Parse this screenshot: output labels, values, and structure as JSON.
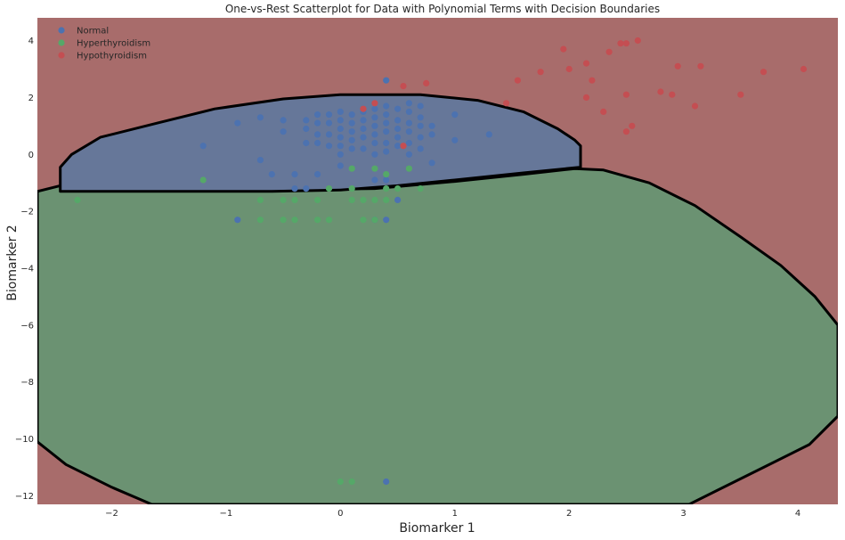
{
  "chart_data": {
    "type": "scatter",
    "title": "One-vs-Rest Scatterplot for Data with Polynomial Terms with Decision Boundaries",
    "xlabel": "Biomarker 1",
    "ylabel": "Biomarker 2",
    "xlim": [
      -2.65,
      4.35
    ],
    "ylim": [
      -12.3,
      4.8
    ],
    "x_ticks": [
      -2,
      -1,
      0,
      1,
      2,
      3,
      4
    ],
    "y_ticks": [
      -12,
      -10,
      -8,
      -6,
      -4,
      -2,
      0,
      2,
      4
    ],
    "x_tick_labels": [
      "−2",
      "−1",
      "0",
      "1",
      "2",
      "3",
      "4"
    ],
    "y_tick_labels": [
      "−12",
      "−10",
      "−8",
      "−6",
      "−4",
      "−2",
      "0",
      "2",
      "4"
    ],
    "grid": false,
    "legend_position": "top-left",
    "regions": [
      {
        "name": "Hypothyroidism",
        "color": "#a86c6b",
        "role": "background"
      },
      {
        "name": "Hyperthyroidism",
        "color": "#6b9272"
      },
      {
        "name": "Normal",
        "color": "#667799"
      }
    ],
    "boundary_color": "#000000",
    "series": [
      {
        "name": "Normal",
        "color": "#4c72b0",
        "points": [
          [
            0.4,
            2.6
          ],
          [
            -0.9,
            1.1
          ],
          [
            -0.7,
            1.3
          ],
          [
            -0.5,
            1.2
          ],
          [
            -0.5,
            0.8
          ],
          [
            -0.3,
            1.2
          ],
          [
            -0.3,
            0.9
          ],
          [
            -0.3,
            0.4
          ],
          [
            -0.2,
            1.4
          ],
          [
            -0.2,
            1.1
          ],
          [
            -0.2,
            0.7
          ],
          [
            -0.2,
            0.4
          ],
          [
            -0.1,
            1.4
          ],
          [
            -0.1,
            1.1
          ],
          [
            -0.1,
            0.7
          ],
          [
            -0.1,
            0.3
          ],
          [
            0.0,
            1.5
          ],
          [
            0.0,
            1.2
          ],
          [
            0.0,
            0.9
          ],
          [
            0.0,
            0.6
          ],
          [
            0.0,
            0.3
          ],
          [
            0.0,
            0.0
          ],
          [
            0.1,
            1.4
          ],
          [
            0.1,
            1.1
          ],
          [
            0.1,
            0.8
          ],
          [
            0.1,
            0.5
          ],
          [
            0.1,
            0.2
          ],
          [
            0.2,
            1.5
          ],
          [
            0.2,
            1.2
          ],
          [
            0.2,
            0.9
          ],
          [
            0.2,
            0.6
          ],
          [
            0.2,
            0.2
          ],
          [
            0.3,
            1.6
          ],
          [
            0.3,
            1.3
          ],
          [
            0.3,
            1.0
          ],
          [
            0.3,
            0.7
          ],
          [
            0.3,
            0.4
          ],
          [
            0.3,
            0.0
          ],
          [
            0.4,
            1.7
          ],
          [
            0.4,
            1.4
          ],
          [
            0.4,
            1.1
          ],
          [
            0.4,
            0.8
          ],
          [
            0.4,
            0.4
          ],
          [
            0.4,
            0.1
          ],
          [
            0.5,
            1.6
          ],
          [
            0.5,
            1.2
          ],
          [
            0.5,
            0.9
          ],
          [
            0.5,
            0.6
          ],
          [
            0.5,
            0.3
          ],
          [
            0.6,
            1.8
          ],
          [
            0.6,
            1.5
          ],
          [
            0.6,
            1.1
          ],
          [
            0.6,
            0.8
          ],
          [
            0.6,
            0.4
          ],
          [
            0.6,
            0.0
          ],
          [
            0.7,
            1.7
          ],
          [
            0.7,
            1.3
          ],
          [
            0.7,
            1.0
          ],
          [
            0.7,
            0.6
          ],
          [
            0.7,
            0.2
          ],
          [
            0.8,
            1.0
          ],
          [
            0.8,
            0.7
          ],
          [
            0.8,
            -0.3
          ],
          [
            1.0,
            1.4
          ],
          [
            1.0,
            0.5
          ],
          [
            1.3,
            0.7
          ],
          [
            -1.2,
            0.3
          ],
          [
            -0.7,
            -0.2
          ],
          [
            -0.6,
            -0.7
          ],
          [
            -0.4,
            -0.7
          ],
          [
            -0.4,
            -1.2
          ],
          [
            -0.3,
            -1.2
          ],
          [
            -0.2,
            -0.7
          ],
          [
            0.0,
            -0.4
          ],
          [
            0.3,
            -0.9
          ],
          [
            0.4,
            -0.9
          ],
          [
            0.5,
            -1.6
          ],
          [
            0.3,
            -2.3
          ],
          [
            0.4,
            -2.3
          ],
          [
            -0.9,
            -2.3
          ],
          [
            0.4,
            -11.5
          ]
        ]
      },
      {
        "name": "Hyperthyroidism",
        "color": "#55a868",
        "points": [
          [
            -2.3,
            -1.6
          ],
          [
            -1.2,
            -0.9
          ],
          [
            -0.7,
            -1.6
          ],
          [
            -0.7,
            -2.3
          ],
          [
            -0.5,
            -1.6
          ],
          [
            -0.5,
            -2.3
          ],
          [
            -0.4,
            -1.6
          ],
          [
            -0.4,
            -2.3
          ],
          [
            -0.2,
            -1.6
          ],
          [
            -0.2,
            -2.3
          ],
          [
            -0.1,
            -1.2
          ],
          [
            -0.1,
            -2.3
          ],
          [
            0.1,
            -0.5
          ],
          [
            0.1,
            -1.2
          ],
          [
            0.1,
            -1.6
          ],
          [
            0.2,
            -1.6
          ],
          [
            0.2,
            -2.3
          ],
          [
            0.3,
            -0.5
          ],
          [
            0.3,
            -1.6
          ],
          [
            0.3,
            -2.3
          ],
          [
            0.4,
            -0.7
          ],
          [
            0.4,
            -1.2
          ],
          [
            0.4,
            -1.6
          ],
          [
            0.5,
            -1.2
          ],
          [
            0.6,
            -0.5
          ],
          [
            0.7,
            -1.2
          ],
          [
            0.0,
            -11.5
          ],
          [
            0.1,
            -11.5
          ]
        ]
      },
      {
        "name": "Hypothyroidism",
        "color": "#c44e52",
        "points": [
          [
            0.2,
            1.6
          ],
          [
            0.3,
            1.8
          ],
          [
            0.55,
            0.3
          ],
          [
            0.55,
            2.4
          ],
          [
            0.75,
            2.5
          ],
          [
            1.45,
            1.8
          ],
          [
            1.55,
            2.6
          ],
          [
            1.75,
            2.9
          ],
          [
            1.95,
            3.7
          ],
          [
            2.0,
            3.0
          ],
          [
            2.15,
            3.2
          ],
          [
            2.15,
            2.0
          ],
          [
            2.2,
            2.6
          ],
          [
            2.3,
            1.5
          ],
          [
            2.35,
            3.6
          ],
          [
            2.45,
            3.9
          ],
          [
            2.5,
            3.9
          ],
          [
            2.5,
            2.1
          ],
          [
            2.5,
            0.8
          ],
          [
            2.55,
            1.0
          ],
          [
            2.6,
            4.0
          ],
          [
            2.8,
            2.2
          ],
          [
            2.9,
            2.1
          ],
          [
            2.95,
            3.1
          ],
          [
            3.1,
            1.7
          ],
          [
            3.15,
            3.1
          ],
          [
            3.5,
            2.1
          ],
          [
            3.7,
            2.9
          ],
          [
            4.05,
            3.0
          ]
        ]
      }
    ]
  }
}
